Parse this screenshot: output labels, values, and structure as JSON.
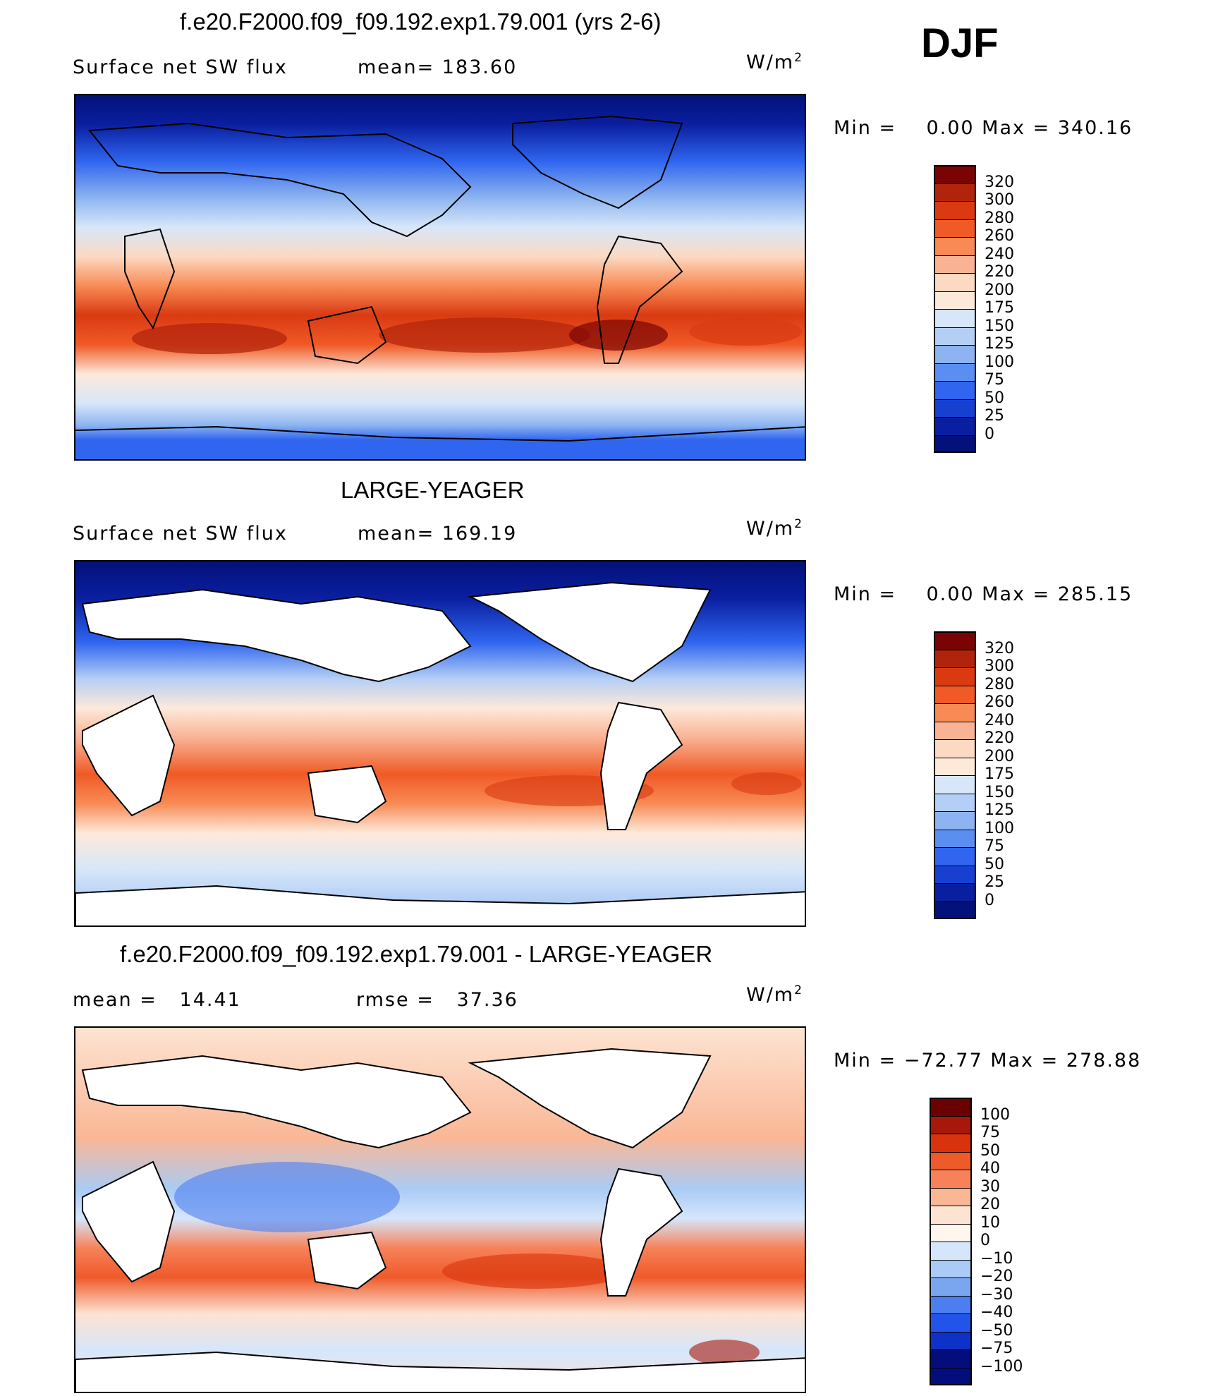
{
  "season": "DJF",
  "units": "W/m",
  "units_sup": "2",
  "panels": [
    {
      "title": "f.e20.F2000.f09_f09.192.exp1.79.001 (yrs 2-6)",
      "left_label": "Surface net SW flux",
      "right_label": "mean= 183.60",
      "minmax": "Min =    0.00 Max = 340.16",
      "levels": [
        "320",
        "300",
        "280",
        "260",
        "240",
        "220",
        "200",
        "175",
        "150",
        "125",
        "100",
        "75",
        "50",
        "25",
        "0"
      ]
    },
    {
      "title": "LARGE-YEAGER",
      "left_label": "Surface net SW flux",
      "right_label": "mean= 169.19",
      "minmax": "Min =    0.00 Max = 285.15",
      "levels": [
        "320",
        "300",
        "280",
        "260",
        "240",
        "220",
        "200",
        "175",
        "150",
        "125",
        "100",
        "75",
        "50",
        "25",
        "0"
      ]
    },
    {
      "title": "f.e20.F2000.f09_f09.192.exp1.79.001 - LARGE-YEAGER",
      "left_label": "mean =   14.41",
      "right_label": "rmse =   37.36",
      "minmax": "Min = −72.77 Max = 278.88",
      "levels": [
        "100",
        "75",
        "50",
        "40",
        "30",
        "20",
        "10",
        "0",
        "−10",
        "−20",
        "−30",
        "−40",
        "−50",
        "−75",
        "−100"
      ]
    }
  ],
  "colors": {
    "abs_scale": [
      "#7a0403",
      "#b1240c",
      "#d93a12",
      "#f05a26",
      "#f88b55",
      "#f9b394",
      "#fcd9c2",
      "#fde9da",
      "#d7e7f9",
      "#b4cff5",
      "#8db4f0",
      "#5a8ef0",
      "#2f65ef",
      "#1740d0",
      "#0a1fa0",
      "#04117a"
    ],
    "diff_scale": [
      "#6b0000",
      "#a7180a",
      "#d8330c",
      "#ef5a2b",
      "#f7825a",
      "#fab796",
      "#fde3d1",
      "#fff6ee",
      "#d5e6fb",
      "#a9cbf5",
      "#7aa6f0",
      "#4c7ef0",
      "#2354ea",
      "#0e32c8",
      "#040d7c"
    ]
  },
  "chart_data": [
    {
      "type": "heatmap",
      "title": "f.e20.F2000.f09_f09.192.exp1.79.001 (yrs 2-6)",
      "variable": "Surface net SW flux",
      "units": "W/m2",
      "mean": 183.6,
      "min": 0.0,
      "max": 340.16,
      "contour_levels": [
        0,
        25,
        50,
        75,
        100,
        125,
        150,
        175,
        200,
        220,
        240,
        260,
        280,
        300,
        320
      ]
    },
    {
      "type": "heatmap",
      "title": "LARGE-YEAGER",
      "variable": "Surface net SW flux",
      "units": "W/m2",
      "mean": 169.19,
      "min": 0.0,
      "max": 285.15,
      "contour_levels": [
        0,
        25,
        50,
        75,
        100,
        125,
        150,
        175,
        200,
        220,
        240,
        260,
        280,
        300,
        320
      ]
    },
    {
      "type": "heatmap",
      "title": "f.e20.F2000.f09_f09.192.exp1.79.001 - LARGE-YEAGER",
      "units": "W/m2",
      "mean": 14.41,
      "rmse": 37.36,
      "min": -72.77,
      "max": 278.88,
      "contour_levels": [
        -100,
        -75,
        -50,
        -40,
        -30,
        -20,
        -10,
        0,
        10,
        20,
        30,
        40,
        50,
        75,
        100
      ]
    }
  ]
}
